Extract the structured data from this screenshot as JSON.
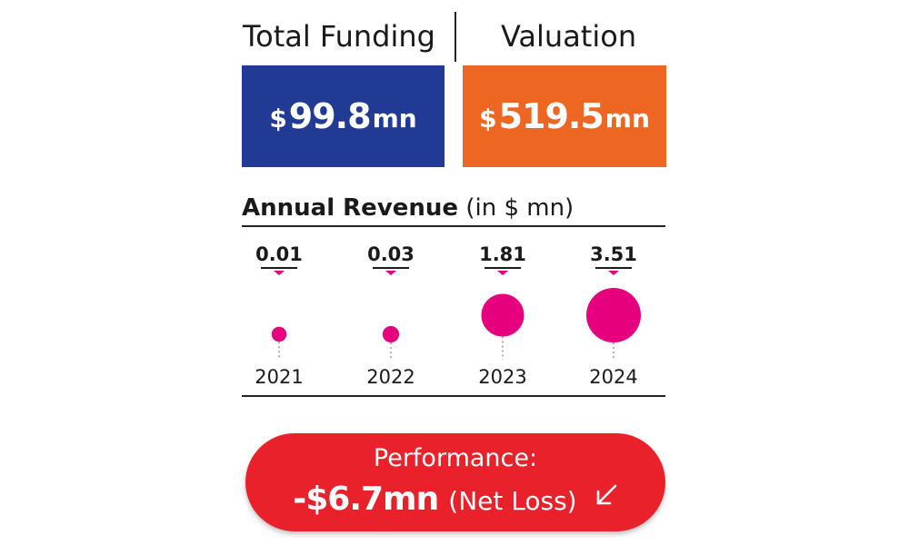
{
  "headers": {
    "funding": "Total Funding",
    "valuation": "Valuation"
  },
  "stats": {
    "funding": {
      "currency": "$",
      "value": "99.8",
      "unit": "mn",
      "color": "#213a93"
    },
    "valuation": {
      "currency": "$",
      "value": "519.5",
      "unit": "mn",
      "color": "#ee6722"
    }
  },
  "revenue_title": {
    "bold": "Annual Revenue",
    "normal": "(in $ mn)"
  },
  "chart_data": {
    "type": "scatter",
    "title": "Annual Revenue (in $ mn)",
    "categories": [
      "2021",
      "2022",
      "2023",
      "2024"
    ],
    "values": [
      0.01,
      0.03,
      1.81,
      3.51
    ],
    "value_labels": [
      "0.01",
      "0.03",
      "1.81",
      "3.51"
    ],
    "bubble_color": "#e6007e"
  },
  "performance": {
    "label": "Performance:",
    "value": "-$6.7mn",
    "note": "(Net Loss)",
    "icon": "arrow-down-left-icon",
    "color": "#e8212b"
  }
}
